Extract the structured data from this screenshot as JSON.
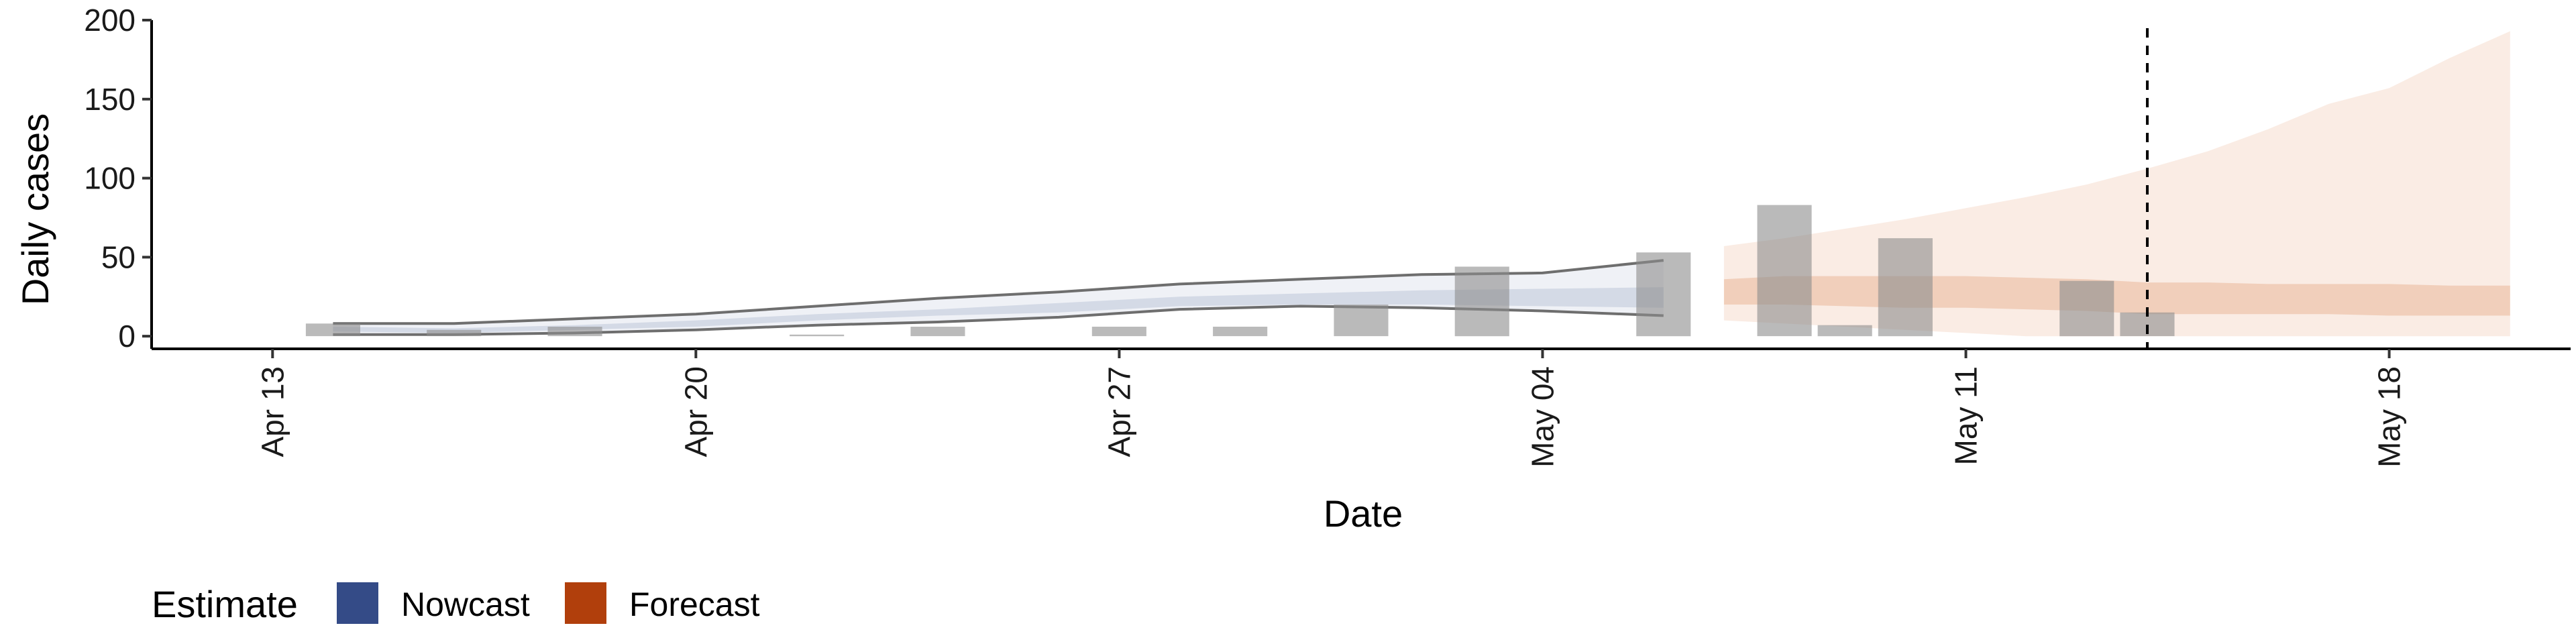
{
  "chart_data": {
    "type": "bar",
    "xlabel": "Date",
    "ylabel": "Daily cases",
    "x_range": [
      "2020-04-11",
      "2020-05-21"
    ],
    "ylim": [
      -8,
      200
    ],
    "y_ticks": [
      0,
      50,
      100,
      150,
      200
    ],
    "x_ticks": [
      {
        "date": "2020-04-13",
        "label": "Apr 13"
      },
      {
        "date": "2020-04-20",
        "label": "Apr 20"
      },
      {
        "date": "2020-04-27",
        "label": "Apr 27"
      },
      {
        "date": "2020-05-04",
        "label": "May 04"
      },
      {
        "date": "2020-05-11",
        "label": "May 11"
      },
      {
        "date": "2020-05-18",
        "label": "May 18"
      }
    ],
    "reported_cases": [
      {
        "date": "2020-04-14",
        "value": 8
      },
      {
        "date": "2020-04-16",
        "value": 4
      },
      {
        "date": "2020-04-18",
        "value": 6
      },
      {
        "date": "2020-04-22",
        "value": 1
      },
      {
        "date": "2020-04-24",
        "value": 6
      },
      {
        "date": "2020-04-27",
        "value": 6
      },
      {
        "date": "2020-04-29",
        "value": 6
      },
      {
        "date": "2020-05-01",
        "value": 20
      },
      {
        "date": "2020-05-03",
        "value": 44
      },
      {
        "date": "2020-05-06",
        "value": 53
      },
      {
        "date": "2020-05-08",
        "value": 83
      },
      {
        "date": "2020-05-09",
        "value": 7
      },
      {
        "date": "2020-05-10",
        "value": 62
      },
      {
        "date": "2020-05-13",
        "value": 35
      },
      {
        "date": "2020-05-14",
        "value": 15
      }
    ],
    "nowcast_dates": [
      "2020-04-14",
      "2020-04-16",
      "2020-04-18",
      "2020-04-20",
      "2020-04-22",
      "2020-04-24",
      "2020-04-26",
      "2020-04-28",
      "2020-04-30",
      "2020-05-02",
      "2020-05-04",
      "2020-05-06"
    ],
    "nowcast_outer_upper": [
      8,
      8,
      11,
      14,
      19,
      24,
      28,
      33,
      36,
      39,
      40,
      48
    ],
    "nowcast_outer_lower": [
      1,
      1,
      2,
      4,
      7,
      9,
      12,
      17,
      19,
      18,
      16,
      13
    ],
    "nowcast_inner_upper": [
      6,
      5,
      7,
      10,
      14,
      17,
      21,
      25,
      27,
      29,
      30,
      31
    ],
    "nowcast_inner_lower": [
      3,
      2,
      4,
      6,
      10,
      13,
      15,
      19,
      20,
      20,
      19,
      18
    ],
    "forecast_dates": [
      "2020-05-07",
      "2020-05-08",
      "2020-05-09",
      "2020-05-10",
      "2020-05-11",
      "2020-05-12",
      "2020-05-13",
      "2020-05-14",
      "2020-05-15",
      "2020-05-16",
      "2020-05-17",
      "2020-05-18",
      "2020-05-19",
      "2020-05-20"
    ],
    "forecast_outer_upper": [
      57,
      62,
      68,
      74,
      81,
      88,
      96,
      106,
      117,
      131,
      147,
      157,
      176,
      193
    ],
    "forecast_outer_lower": [
      10,
      8,
      6,
      4,
      2,
      0,
      0,
      0,
      0,
      0,
      0,
      0,
      0,
      0
    ],
    "forecast_inner_upper": [
      36,
      38,
      38,
      38,
      38,
      37,
      36,
      34,
      34,
      33,
      33,
      33,
      32,
      32
    ],
    "forecast_inner_lower": [
      20,
      20,
      19,
      18,
      18,
      17,
      16,
      14,
      14,
      14,
      14,
      13,
      13,
      13
    ],
    "vline_date": "2020-05-14",
    "grid": false,
    "legend": {
      "title": "Estimate",
      "placement": "bottom-left",
      "items": [
        {
          "label": "Nowcast",
          "color": "#344b87"
        },
        {
          "label": "Forecast",
          "color": "#b13f0c"
        }
      ]
    },
    "colors": {
      "bars": "#8c8c8c",
      "nowcast_band": "#344b87",
      "nowcast_lines": "#6e6e6e",
      "forecast_band": "#d9793f",
      "vline": "#000000"
    }
  }
}
